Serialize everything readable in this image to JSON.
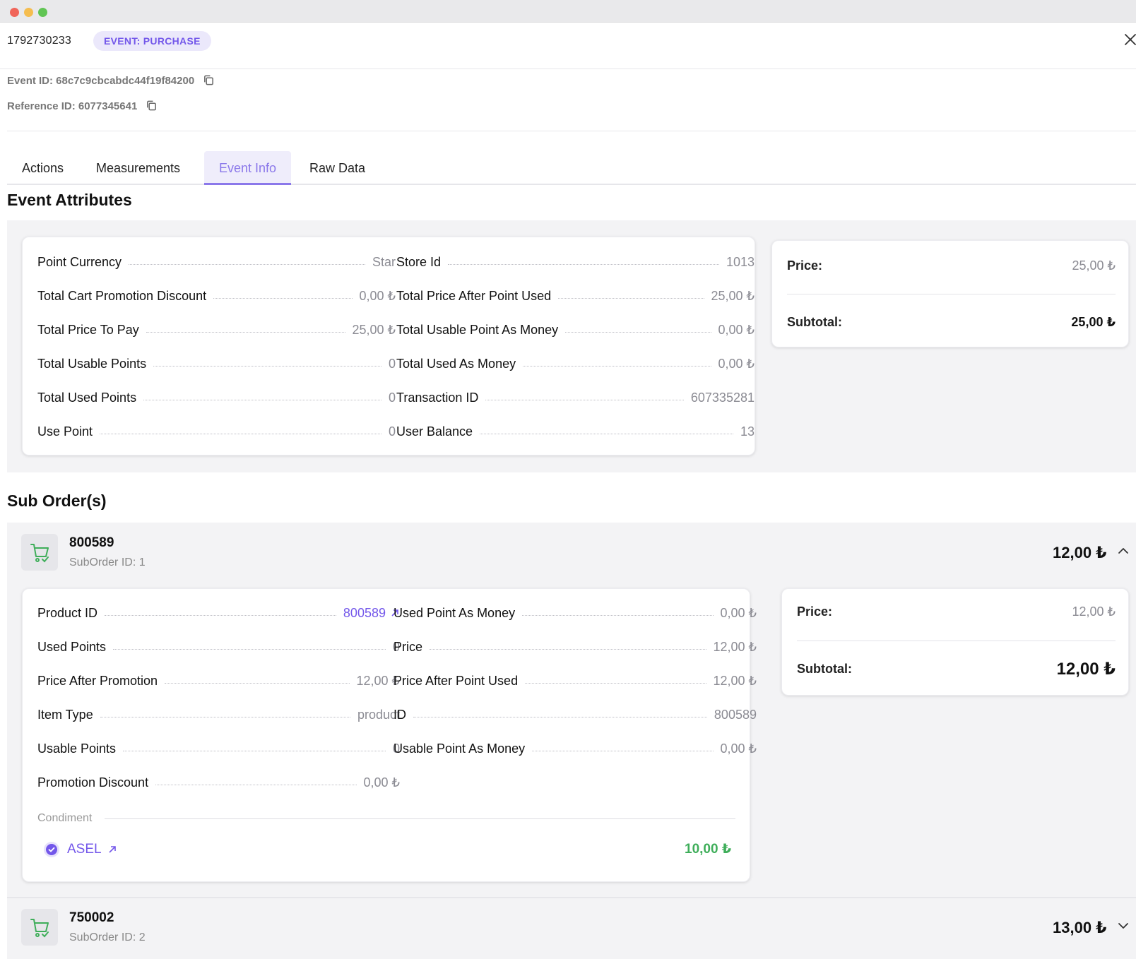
{
  "window": {
    "dots": [
      "#f0655a",
      "#f5bd4f",
      "#61c554"
    ]
  },
  "header": {
    "event_number": "1792730233",
    "badge": "EVENT: PURCHASE"
  },
  "meta": {
    "event_id": "Event ID: 68c7c9cbcabdc44f19f84200",
    "reference_id": "Reference ID: 6077345641"
  },
  "tabs": [
    {
      "label": "Actions"
    },
    {
      "label": "Measurements"
    },
    {
      "label": "Event Info"
    },
    {
      "label": "Raw Data"
    }
  ],
  "active_tab": "Event Info",
  "event_attributes": {
    "title": "Event Attributes",
    "left": [
      {
        "key": "Point Currency",
        "value": "Star"
      },
      {
        "key": "Total Cart Promotion Discount",
        "value": "0,00 ₺"
      },
      {
        "key": "Total Price To Pay",
        "value": "25,00 ₺"
      },
      {
        "key": "Total Usable Points",
        "value": "0"
      },
      {
        "key": "Total Used Points",
        "value": "0"
      },
      {
        "key": "Use Point",
        "value": "0"
      }
    ],
    "right": [
      {
        "key": "Store Id",
        "value": "1013"
      },
      {
        "key": "Total Price After Point Used",
        "value": "25,00 ₺"
      },
      {
        "key": "Total Usable Point As Money",
        "value": "0,00 ₺"
      },
      {
        "key": "Total Used As Money",
        "value": "0,00 ₺"
      },
      {
        "key": "Transaction ID",
        "value": "607335281"
      },
      {
        "key": "User Balance",
        "value": "13"
      }
    ],
    "summary": {
      "price_label": "Price:",
      "price_value": "25,00 ₺",
      "subtotal_label": "Subtotal:",
      "subtotal_value": "25,00 ₺"
    }
  },
  "sub_orders": {
    "title": "Sub Order(s)",
    "items": [
      {
        "id": "800589",
        "sub_label": "SubOrder ID: 1",
        "total": "12,00 ₺",
        "expanded": true,
        "left": [
          {
            "key": "Product ID",
            "value": "800589"
          },
          {
            "key": "Used Points",
            "value": "0"
          },
          {
            "key": "Price After Promotion",
            "value": "12,00 ₺"
          },
          {
            "key": "Item Type",
            "value": "product"
          },
          {
            "key": "Usable Points",
            "value": "0"
          },
          {
            "key": "Promotion Discount",
            "value": "0,00 ₺"
          }
        ],
        "right": [
          {
            "key": "Used Point As Money",
            "value": "0,00 ₺"
          },
          {
            "key": "Price",
            "value": "12,00 ₺"
          },
          {
            "key": "Price After Point Used",
            "value": "12,00 ₺"
          },
          {
            "key": "ID",
            "value": "800589"
          },
          {
            "key": "Usable Point As Money",
            "value": "0,00 ₺"
          }
        ],
        "condiment_label": "Condiment",
        "condiment": {
          "name": "ASEL",
          "price": "10,00 ₺"
        },
        "summary": {
          "price_label": "Price:",
          "price_value": "12,00 ₺",
          "subtotal_label": "Subtotal:",
          "subtotal_value": "12,00 ₺"
        }
      },
      {
        "id": "750002",
        "sub_label": "SubOrder ID: 2",
        "total": "13,00 ₺",
        "expanded": false
      }
    ]
  }
}
